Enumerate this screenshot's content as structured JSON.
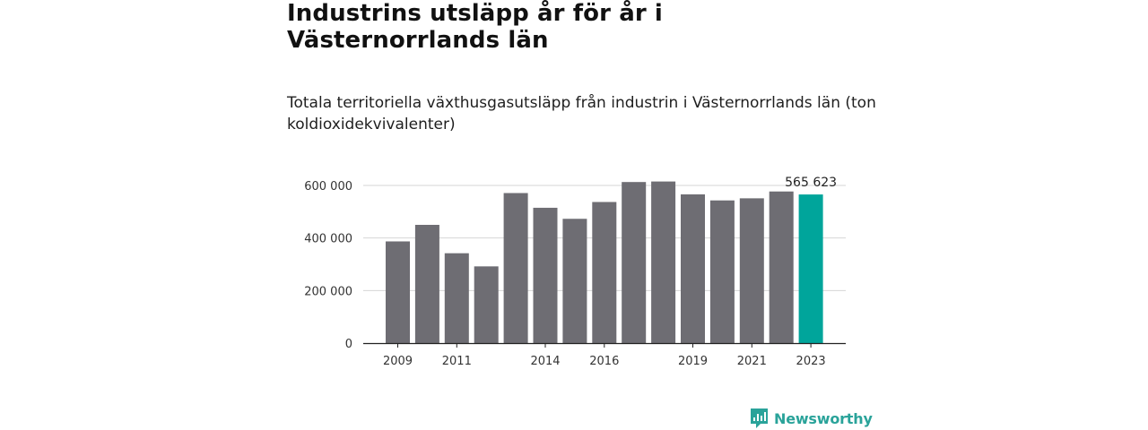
{
  "title": "Industrins utsläpp år för år i Västernorrlands län",
  "subtitle": "Totala territoriella växthusgasutsläpp från industrin i Västernorrlands län (ton koldioxidekvivalenter)",
  "brand": {
    "name": "Newsworthy",
    "color": "#2aa39a"
  },
  "colors": {
    "bar": "#6e6d73",
    "highlight": "#00a59b",
    "grid": "#d6d6d6",
    "axis": "#222222"
  },
  "chart_data": {
    "type": "bar",
    "categories": [
      "2009",
      "2010",
      "2011",
      "2012",
      "2013",
      "2014",
      "2015",
      "2016",
      "2017",
      "2018",
      "2019",
      "2020",
      "2021",
      "2022",
      "2023"
    ],
    "values": [
      387000,
      450000,
      342000,
      292000,
      571000,
      515000,
      473000,
      537000,
      613000,
      615000,
      566000,
      543000,
      551000,
      577000,
      565623
    ],
    "tick_labels_x": [
      "2009",
      "",
      "2011",
      "",
      "",
      "2014",
      "",
      "2016",
      "",
      "",
      "2019",
      "",
      "2021",
      "",
      "2023"
    ],
    "y_ticks": [
      0,
      200000,
      400000,
      600000
    ],
    "y_tick_labels": [
      "0",
      "200 000",
      "400 000",
      "600 000"
    ],
    "ylim": [
      0,
      600000
    ],
    "highlight_index": 14,
    "annotation": "565 623",
    "grid": true,
    "xlabel": "",
    "ylabel": ""
  }
}
